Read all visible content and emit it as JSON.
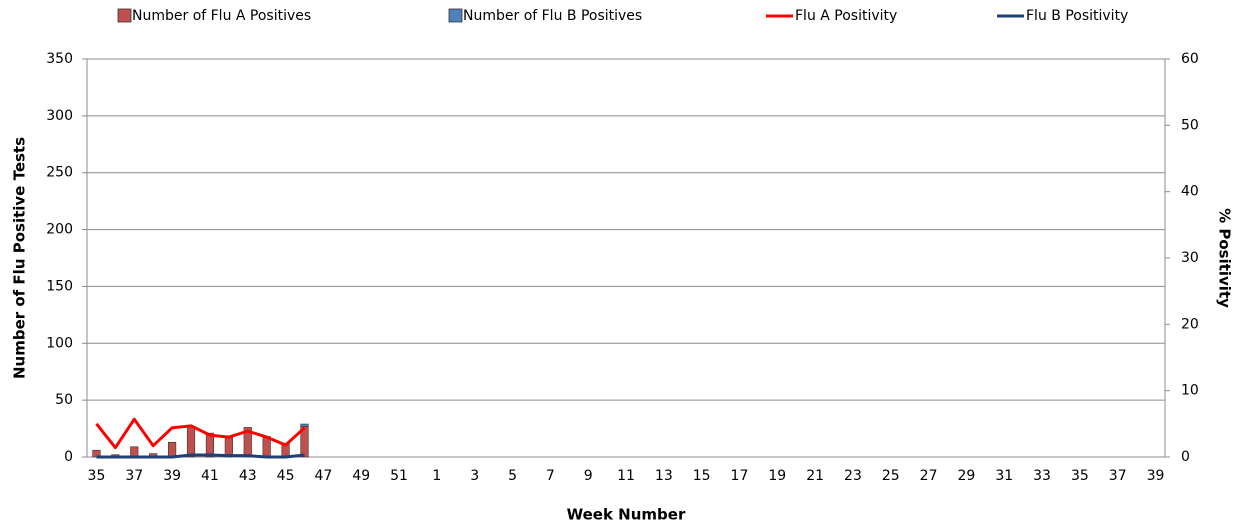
{
  "chart_data": {
    "type": "bar",
    "stacked": true,
    "x_label": "Week Number",
    "y_label": "Number of Flu Positive Tests",
    "y2_label": "% Positivity",
    "categories": [
      "35",
      null,
      "37",
      null,
      "39",
      null,
      "41",
      null,
      "43",
      null,
      "45",
      null,
      "47",
      null,
      "49",
      null,
      "51",
      null,
      "1",
      null,
      "3",
      null,
      "5",
      null,
      "7",
      null,
      "9",
      null,
      "11",
      null,
      "13",
      null,
      "15",
      null,
      "17",
      null,
      "19",
      null,
      "21",
      null,
      "23",
      null,
      "25",
      null,
      "27",
      null,
      "29",
      null,
      "31",
      null,
      "33",
      null,
      "35",
      null,
      "37",
      null,
      "39"
    ],
    "ylim": [
      0,
      350
    ],
    "yticks": [
      0,
      50,
      100,
      150,
      200,
      250,
      300,
      350
    ],
    "y2lim": [
      0,
      60
    ],
    "y2ticks": [
      0,
      10,
      20,
      30,
      40,
      50,
      60
    ],
    "grid": true,
    "legend": "top",
    "series": [
      {
        "name": "Number of Flu A Positives",
        "type": "bar",
        "color": "#c0504d",
        "values": [
          6,
          2,
          9,
          3,
          13,
          27,
          20,
          17,
          26,
          18,
          12,
          27,
          null,
          null,
          null,
          null,
          null,
          null,
          null,
          null,
          null,
          null,
          null,
          null,
          null,
          null,
          null,
          null,
          null,
          null,
          null,
          null,
          null,
          null,
          null,
          null,
          null,
          null,
          null,
          null,
          null,
          null,
          null,
          null,
          null,
          null,
          null,
          null,
          null,
          null,
          null,
          null,
          null,
          null,
          null,
          null,
          null
        ]
      },
      {
        "name": "Number of Flu B Positives",
        "type": "bar",
        "color": "#4f81bd",
        "values": [
          0,
          0,
          0,
          0,
          0,
          0,
          1,
          1,
          0,
          0,
          0,
          2,
          null,
          null,
          null,
          null,
          null,
          null,
          null,
          null,
          null,
          null,
          null,
          null,
          null,
          null,
          null,
          null,
          null,
          null,
          null,
          null,
          null,
          null,
          null,
          null,
          null,
          null,
          null,
          null,
          null,
          null,
          null,
          null,
          null,
          null,
          null,
          null,
          null,
          null,
          null,
          null,
          null,
          null,
          null,
          null,
          null
        ]
      },
      {
        "name": "Flu A Positivity",
        "type": "line",
        "axis": "y2",
        "color": "#ff0000",
        "values": [
          5.0,
          1.4,
          5.7,
          1.7,
          4.4,
          4.7,
          3.3,
          3.0,
          3.9,
          3.0,
          1.8,
          4.4,
          null,
          null,
          null,
          null,
          null,
          null,
          null,
          null,
          null,
          null,
          null,
          null,
          null,
          null,
          null,
          null,
          null,
          null,
          null,
          null,
          null,
          null,
          null,
          null,
          null,
          null,
          null,
          null,
          null,
          null,
          null,
          null,
          null,
          null,
          null,
          null,
          null,
          null,
          null,
          null,
          null,
          null,
          null,
          null,
          null
        ]
      },
      {
        "name": "Flu B Positivity",
        "type": "line",
        "axis": "y2",
        "color": "#1f3f77",
        "values": [
          0,
          0,
          0,
          0,
          0,
          0.3,
          0.3,
          0.2,
          0.2,
          0,
          0,
          0.3,
          null,
          null,
          null,
          null,
          null,
          null,
          null,
          null,
          null,
          null,
          null,
          null,
          null,
          null,
          null,
          null,
          null,
          null,
          null,
          null,
          null,
          null,
          null,
          null,
          null,
          null,
          null,
          null,
          null,
          null,
          null,
          null,
          null,
          null,
          null,
          null,
          null,
          null,
          null,
          null,
          null,
          null,
          null,
          null,
          null
        ]
      }
    ]
  }
}
